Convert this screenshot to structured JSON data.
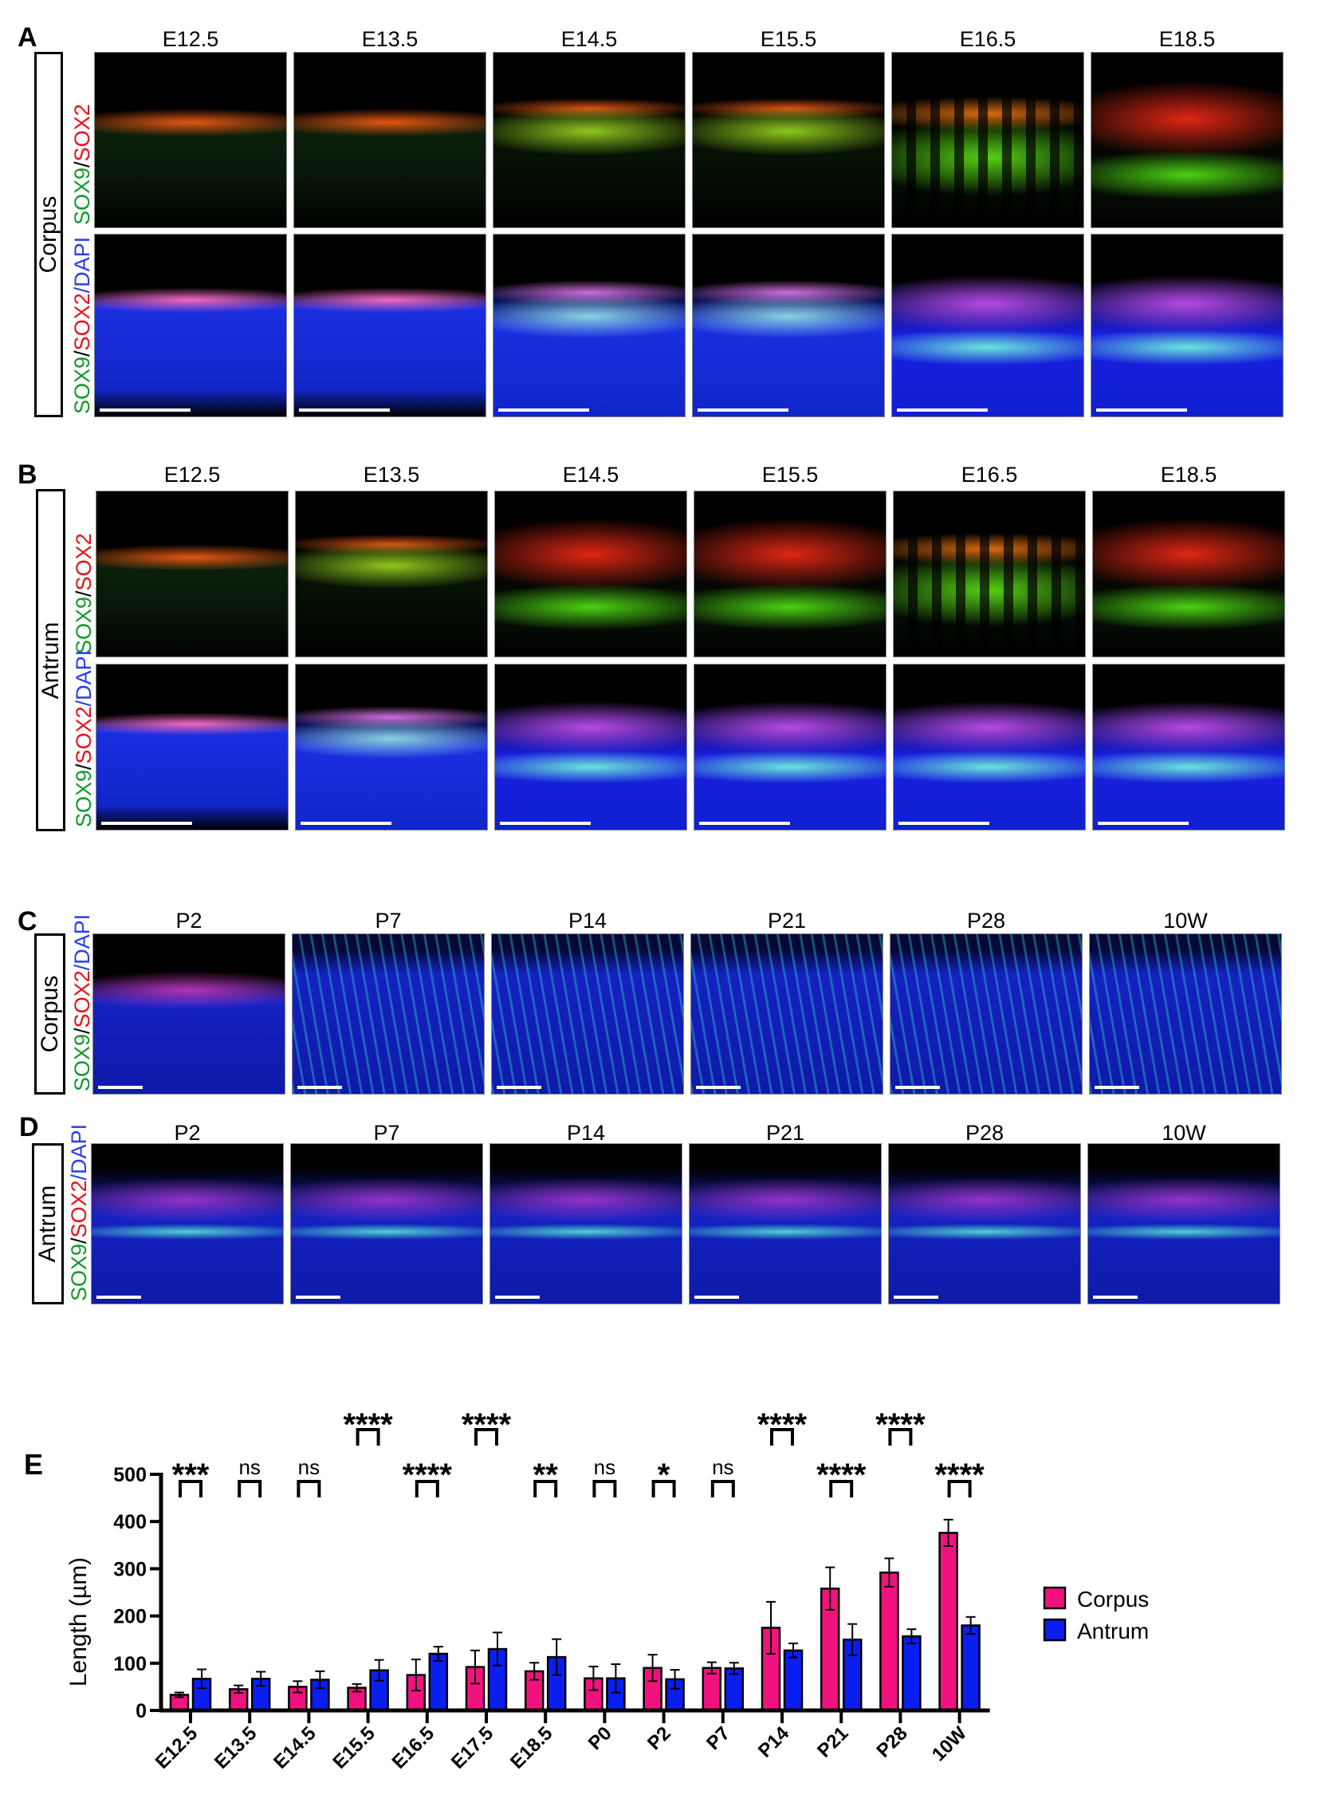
{
  "panels": [
    {
      "letter": "A",
      "region": "Corpus",
      "columns": [
        "E12.5",
        "E13.5",
        "E14.5",
        "E15.5",
        "E16.5",
        "E18.5"
      ],
      "rows": [
        {
          "channels": [
            "SOX9",
            "/",
            "SOX2"
          ]
        },
        {
          "channels": [
            "SOX9",
            "/",
            "SOX2",
            "/DAPI"
          ]
        }
      ]
    },
    {
      "letter": "B",
      "region": "Antrum",
      "columns": [
        "E12.5",
        "E13.5",
        "E14.5",
        "E15.5",
        "E16.5",
        "E18.5"
      ],
      "rows": [
        {
          "channels": [
            "SOX9",
            "/",
            "SOX2"
          ]
        },
        {
          "channels": [
            "SOX9",
            "/",
            "SOX2",
            "/DAPI"
          ]
        }
      ]
    },
    {
      "letter": "C",
      "region": "Corpus",
      "columns": [
        "P2",
        "P7",
        "P14",
        "P21",
        "P28",
        "10W"
      ],
      "rows": [
        {
          "channels": [
            "SOX9",
            "/",
            "SOX2",
            "/DAPI"
          ]
        }
      ]
    },
    {
      "letter": "D",
      "region": "Antrum",
      "columns": [
        "P2",
        "P7",
        "P14",
        "P21",
        "P28",
        "10W"
      ],
      "rows": [
        {
          "channels": [
            "SOX9",
            "/",
            "SOX2",
            "/DAPI"
          ]
        }
      ]
    }
  ],
  "chart_data": {
    "panel_letter": "E",
    "type": "bar",
    "ylabel": "Length (µm)",
    "xlabel": "",
    "ylim": [
      0,
      500
    ],
    "yticks": [
      "0",
      "100",
      "200",
      "300",
      "400",
      "500"
    ],
    "categories": [
      "E12.5",
      "E13.5",
      "E14.5",
      "E15.5",
      "E16.5",
      "E17.5",
      "E18.5",
      "P0",
      "P2",
      "P7",
      "P14",
      "P21",
      "P28",
      "10W"
    ],
    "series": [
      {
        "name": "Corpus",
        "color": "#f0127e",
        "values": [
          33,
          45,
          50,
          48,
          75,
          92,
          83,
          68,
          90,
          90,
          175,
          258,
          292,
          376
        ],
        "sd": [
          5,
          8,
          12,
          8,
          33,
          35,
          18,
          25,
          28,
          12,
          55,
          45,
          30,
          28
        ]
      },
      {
        "name": "Antrum",
        "color": "#0a1ef0",
        "values": [
          67,
          67,
          65,
          85,
          120,
          130,
          113,
          68,
          66,
          89,
          127,
          150,
          157,
          180
        ],
        "sd": [
          20,
          15,
          18,
          22,
          15,
          35,
          38,
          30,
          20,
          12,
          15,
          33,
          15,
          18
        ]
      }
    ],
    "significance": [
      {
        "category": "E12.5",
        "label": "***",
        "level": "lower"
      },
      {
        "category": "E13.5",
        "label": "ns",
        "level": "lower"
      },
      {
        "category": "E14.5",
        "label": "ns",
        "level": "lower"
      },
      {
        "category": "E15.5",
        "label": "****",
        "level": "upper"
      },
      {
        "category": "E16.5",
        "label": "****",
        "level": "lower"
      },
      {
        "category": "E17.5",
        "label": "****",
        "level": "upper"
      },
      {
        "category": "E18.5",
        "label": "**",
        "level": "lower"
      },
      {
        "category": "P0",
        "label": "ns",
        "level": "lower"
      },
      {
        "category": "P2",
        "label": "*",
        "level": "lower"
      },
      {
        "category": "P7",
        "label": "ns",
        "level": "lower"
      },
      {
        "category": "P14",
        "label": "****",
        "level": "upper"
      },
      {
        "category": "P21",
        "label": "****",
        "level": "lower"
      },
      {
        "category": "P28",
        "label": "****",
        "level": "upper"
      },
      {
        "category": "10W",
        "label": "****",
        "level": "lower"
      }
    ],
    "legend": {
      "position": "right",
      "entries": [
        "Corpus",
        "Antrum"
      ]
    },
    "grid": false
  }
}
